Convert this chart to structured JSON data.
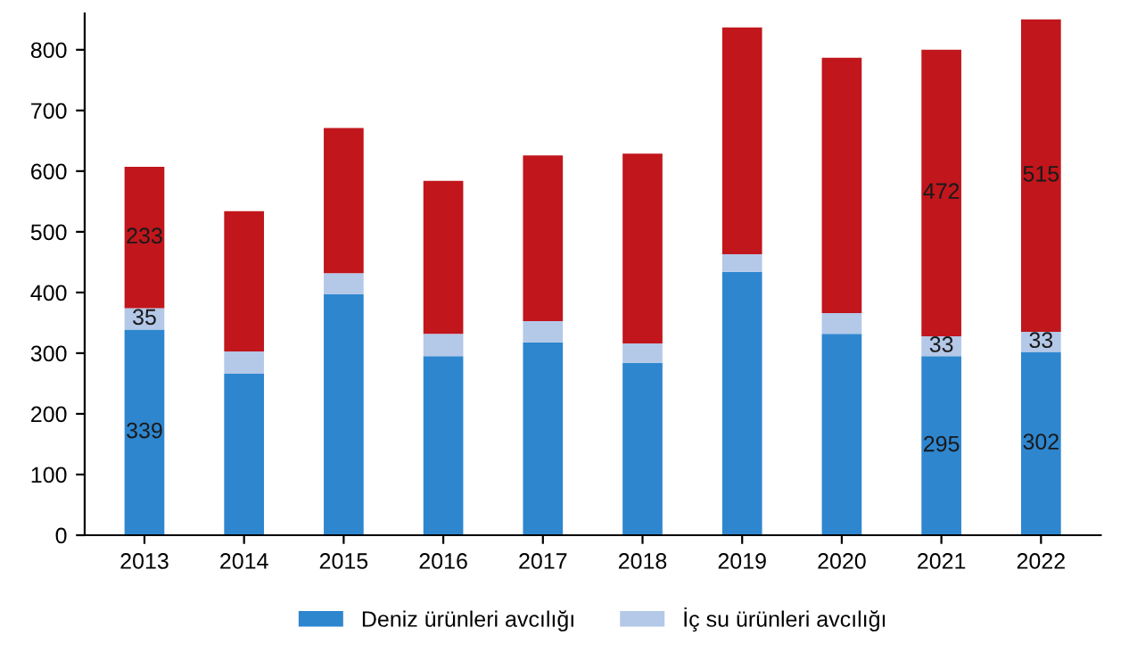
{
  "chart_data": {
    "type": "bar",
    "stacked": true,
    "categories": [
      "2013",
      "2014",
      "2015",
      "2016",
      "2017",
      "2018",
      "2019",
      "2020",
      "2021",
      "2022"
    ],
    "series": [
      {
        "name": "Deniz ürünleri avcılığı",
        "color": "#2e86cf",
        "values": [
          339,
          266,
          397,
          295,
          318,
          284,
          434,
          332,
          295,
          302
        ],
        "value_labels": [
          "339",
          null,
          null,
          null,
          null,
          null,
          null,
          null,
          "295",
          "302"
        ]
      },
      {
        "name": "İç su ürünleri avcılığı",
        "color": "#b4c8e8",
        "values": [
          35,
          37,
          35,
          37,
          35,
          32,
          29,
          34,
          33,
          33
        ],
        "value_labels": [
          "35",
          null,
          null,
          null,
          null,
          null,
          null,
          null,
          "33",
          "33"
        ]
      },
      {
        "color": "#c0161c",
        "values": [
          233,
          231,
          239,
          252,
          273,
          313,
          374,
          421,
          472,
          515
        ],
        "value_labels": [
          "233",
          null,
          null,
          null,
          null,
          null,
          null,
          null,
          "472",
          "515"
        ]
      }
    ],
    "ylim": [
      0,
      860
    ],
    "yticks": [
      0,
      100,
      200,
      300,
      400,
      500,
      600,
      700,
      800
    ],
    "grid": false,
    "legend": "bottom"
  }
}
